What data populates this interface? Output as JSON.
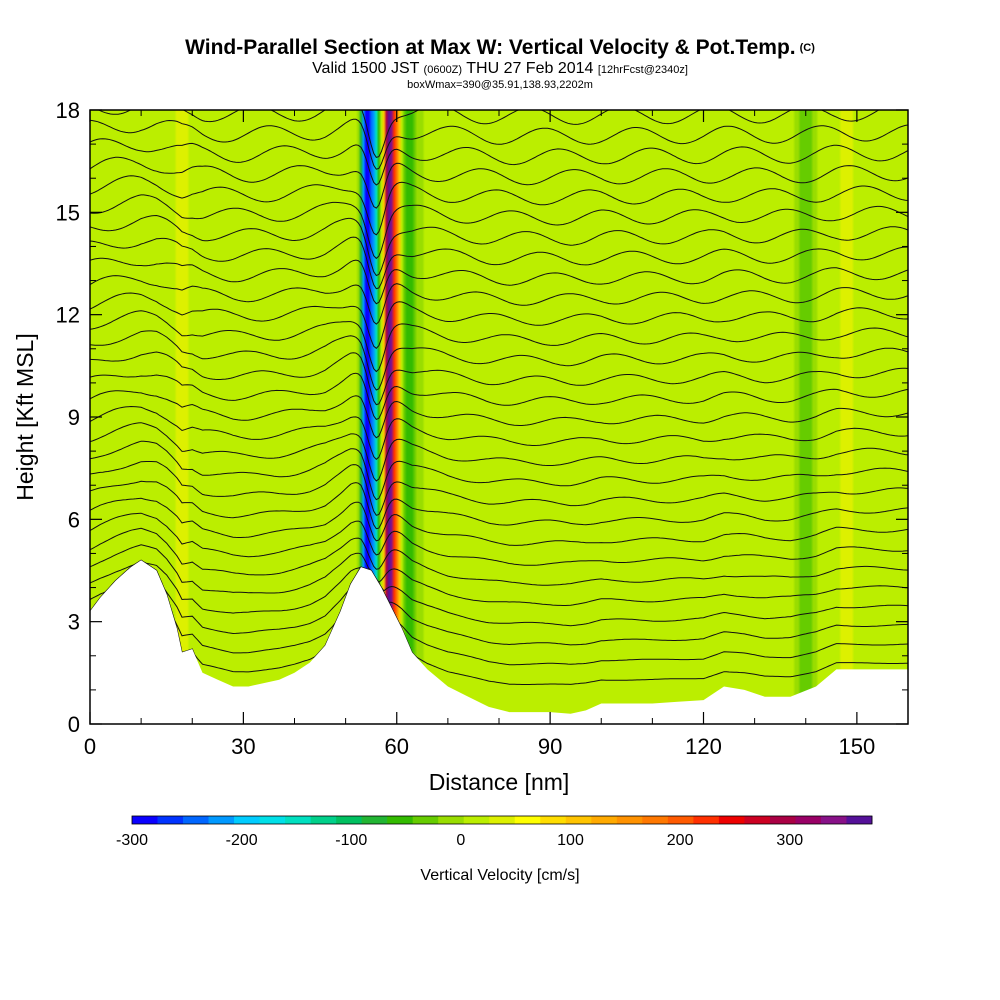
{
  "header": {
    "title": "Wind-Parallel Section at Max W: Vertical Velocity & Pot.Temp.",
    "copyright": "(C)",
    "subtitle_prefix": "Valid 1500 JST",
    "subtitle_zulu": "(0600Z)",
    "subtitle_date": "THU 27 Feb 2014",
    "subtitle_fcst": "[12hrFcst@2340z]",
    "box_info": "boxWmax=390@35.91,138.93,2202m"
  },
  "chart_data": {
    "type": "heatmap",
    "title": "Wind-Parallel Section at Max W: Vertical Velocity & Pot.Temp.",
    "xlabel": "Distance [nm]",
    "ylabel": "Height [Kft MSL]",
    "xlim": [
      0,
      160
    ],
    "ylim": [
      0,
      18
    ],
    "x_ticks": [
      0,
      30,
      60,
      90,
      120,
      150
    ],
    "y_ticks": [
      0,
      3,
      6,
      9,
      12,
      15,
      18
    ],
    "terrain": {
      "x": [
        0,
        2,
        5,
        8,
        10,
        13,
        15,
        17,
        18,
        20,
        22,
        25,
        28,
        31,
        34,
        37,
        40,
        43,
        46,
        49,
        51,
        53,
        55,
        57,
        59,
        61,
        63,
        66,
        70,
        74,
        78,
        82,
        86,
        90,
        94,
        97,
        100,
        105,
        110,
        115,
        120,
        124,
        128,
        132,
        137,
        142,
        146,
        150,
        155,
        160
      ],
      "height": [
        3.3,
        3.7,
        4.2,
        4.6,
        4.8,
        4.5,
        3.8,
        2.8,
        2.1,
        2.2,
        1.5,
        1.3,
        1.1,
        1.1,
        1.2,
        1.3,
        1.5,
        1.8,
        2.3,
        3.3,
        4.1,
        4.6,
        4.5,
        4.0,
        3.4,
        2.8,
        2.1,
        1.6,
        1.1,
        0.8,
        0.5,
        0.35,
        0.35,
        0.35,
        0.3,
        0.4,
        0.6,
        0.6,
        0.6,
        0.65,
        0.7,
        1.1,
        1.0,
        0.8,
        0.8,
        1.1,
        1.6,
        1.6,
        1.6,
        1.6
      ]
    },
    "updraft_columns": [
      {
        "x": 18,
        "w": 40
      },
      {
        "x": 34,
        "w": 25
      },
      {
        "x": 47,
        "w": 25
      },
      {
        "x": 54,
        "w": -300
      },
      {
        "x": 55.5,
        "w": -200
      },
      {
        "x": 58.5,
        "w": 390
      },
      {
        "x": 60,
        "w": 150
      },
      {
        "x": 62.5,
        "w": -60
      },
      {
        "x": 70,
        "w": 20
      },
      {
        "x": 84,
        "w": 15
      },
      {
        "x": 99,
        "w": 15
      },
      {
        "x": 112,
        "w": 15
      },
      {
        "x": 134,
        "w": 20
      },
      {
        "x": 140,
        "w": -40
      },
      {
        "x": 148,
        "w": 45
      }
    ],
    "theta_contour_heights": [
      1.0,
      1.6,
      2.2,
      2.8,
      3.4,
      4.0,
      4.6,
      5.2,
      5.8,
      6.4,
      7.0,
      7.6,
      8.2,
      8.8,
      9.4,
      10.0,
      10.6,
      11.2,
      11.8,
      12.4,
      13.0,
      13.6,
      14.2,
      14.8,
      15.4,
      16.0,
      16.6,
      17.2,
      17.8
    ],
    "colorbar": {
      "label": "Vertical Velocity [cm/s]",
      "min": -300,
      "max": 375,
      "tick_values": [
        -300,
        -200,
        -100,
        0,
        100,
        200,
        300
      ],
      "tick_labels": [
        "-300",
        "-200",
        "-100",
        "0",
        "100",
        "200",
        "300"
      ],
      "colors": [
        "#0a00ff",
        "#0033ff",
        "#0066ff",
        "#0099ff",
        "#00ccff",
        "#00e0e8",
        "#00e0c0",
        "#00d08a",
        "#00c060",
        "#22b533",
        "#33bb00",
        "#66cc00",
        "#99dd00",
        "#bbee00",
        "#ddf000",
        "#ffff00",
        "#ffdd00",
        "#ffc400",
        "#ffaa00",
        "#ff9200",
        "#ff7800",
        "#ff5a00",
        "#ff3000",
        "#ee0000",
        "#cc0022",
        "#aa0044",
        "#990066",
        "#881188",
        "#551199"
      ]
    }
  }
}
